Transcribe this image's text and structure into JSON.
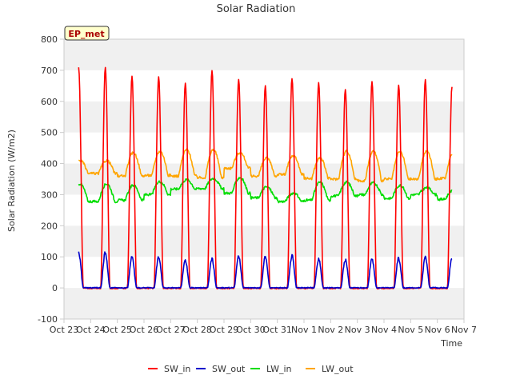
{
  "chart_data": {
    "type": "line",
    "title": "Solar Radiation",
    "xlabel": "Time",
    "ylabel": "Solar Radiation (W/m2)",
    "ylim": [
      -100,
      800
    ],
    "yticks": [
      -100,
      0,
      100,
      200,
      300,
      400,
      500,
      600,
      700,
      800
    ],
    "xlim": [
      0,
      15
    ],
    "xtick_labels": [
      "Oct 23",
      "Oct 24",
      "Oct 25",
      "Oct 26",
      "Oct 27",
      "Oct 28",
      "Oct 29",
      "Oct 30",
      "Oct 31",
      "Nov 1",
      "Nov 2",
      "Nov 3",
      "Nov 4",
      "Nov 5",
      "Nov 6",
      "Nov 7"
    ],
    "grid": "horizontal alternating bands",
    "legend_position": "bottom",
    "station_badge": "EP_met",
    "day_start": 0.55,
    "day_end": 14.55,
    "series": [
      {
        "name": "SW_in",
        "color": "#ff0000",
        "daily_peak": [
          710,
          680,
          680,
          660,
          700,
          673,
          650,
          676,
          660,
          640,
          663,
          655,
          670,
          648
        ]
      },
      {
        "name": "SW_out",
        "color": "#0000cc",
        "daily_peak": [
          118,
          104,
          104,
          92,
          98,
          104,
          104,
          108,
          98,
          96,
          98,
          100,
          102,
          100
        ]
      },
      {
        "name": "LW_in",
        "color": "#00dd00",
        "daily_min": [
          278,
          282,
          300,
          318,
          320,
          305,
          290,
          278,
          282,
          296,
          300,
          288,
          300,
          285
        ],
        "daily_max": [
          335,
          330,
          342,
          348,
          352,
          355,
          325,
          305,
          340,
          340,
          338,
          330,
          322,
          315
        ]
      },
      {
        "name": "LW_out",
        "color": "#ffa500",
        "daily_min": [
          368,
          360,
          362,
          360,
          355,
          385,
          360,
          365,
          352,
          350,
          345,
          350,
          350,
          352
        ],
        "daily_max": [
          410,
          435,
          440,
          445,
          445,
          435,
          418,
          425,
          418,
          440,
          440,
          438,
          440,
          432
        ]
      }
    ]
  }
}
